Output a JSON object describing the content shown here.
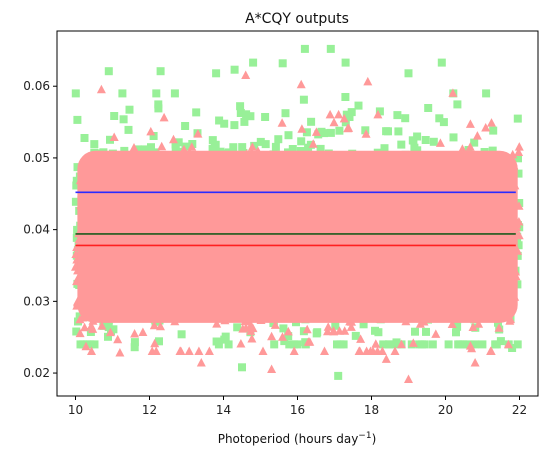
{
  "chart_data": {
    "type": "scatter",
    "title": "A*CQY outputs",
    "xlabel_main": "Photoperiod (hours day",
    "xlabel_sup": "−1",
    "xlabel_close": ")",
    "ylabel": "",
    "xlim": [
      9.5,
      22.5
    ],
    "ylim": [
      0.0168,
      0.0677
    ],
    "xticks": [
      "10",
      "12",
      "14",
      "16",
      "18",
      "20",
      "22"
    ],
    "xtick_values": [
      10,
      12,
      14,
      16,
      18,
      20,
      22
    ],
    "yticks": [
      "0.02",
      "0.03",
      "0.04",
      "0.05",
      "0.06"
    ],
    "ytick_values": [
      0.02,
      0.03,
      0.04,
      0.05,
      0.06
    ],
    "grid": false,
    "legend": "none",
    "scatter_series": [
      {
        "marker": "square",
        "color": "#98f098",
        "x_range": [
          10,
          22
        ],
        "center": 0.0394,
        "spread": 0.0075,
        "band": [
          0.024,
          0.059
        ],
        "outliers": [
          {
            "x": 10.9,
            "y": 0.0621
          },
          {
            "x": 12.3,
            "y": 0.0621
          },
          {
            "x": 13.8,
            "y": 0.0618
          },
          {
            "x": 14.3,
            "y": 0.0623
          },
          {
            "x": 14.8,
            "y": 0.0633
          },
          {
            "x": 15.6,
            "y": 0.0632
          },
          {
            "x": 16.2,
            "y": 0.0652
          },
          {
            "x": 16.9,
            "y": 0.0652
          },
          {
            "x": 17.3,
            "y": 0.0633
          },
          {
            "x": 19.9,
            "y": 0.0633
          },
          {
            "x": 19.0,
            "y": 0.0618
          },
          {
            "x": 10.2,
            "y": 0.024
          },
          {
            "x": 11.6,
            "y": 0.0236
          },
          {
            "x": 17.1,
            "y": 0.0196
          },
          {
            "x": 21.8,
            "y": 0.0235
          },
          {
            "x": 14.5,
            "y": 0.0208
          }
        ]
      },
      {
        "marker": "triangle-up",
        "color": "#ff9999",
        "x_range": [
          10,
          22
        ],
        "center": 0.0378,
        "spread": 0.0065,
        "band": [
          0.023,
          0.056
        ],
        "outliers": [
          {
            "x": 10.7,
            "y": 0.0595
          },
          {
            "x": 14.6,
            "y": 0.0615
          },
          {
            "x": 16.1,
            "y": 0.0602
          },
          {
            "x": 17.9,
            "y": 0.0606
          },
          {
            "x": 20.2,
            "y": 0.059
          },
          {
            "x": 11.2,
            "y": 0.0228
          },
          {
            "x": 13.4,
            "y": 0.0214
          },
          {
            "x": 15.3,
            "y": 0.0205
          },
          {
            "x": 18.4,
            "y": 0.0219
          },
          {
            "x": 19.0,
            "y": 0.0191
          },
          {
            "x": 20.8,
            "y": 0.0214
          }
        ]
      }
    ],
    "mean_lines": [
      {
        "color": "#2b2bff",
        "y": 0.0452
      },
      {
        "color": "#1e5a1e",
        "y": 0.0394
      },
      {
        "color": "#ff2020",
        "y": 0.0378
      }
    ],
    "mean_lines_x": [
      10,
      21.9
    ]
  }
}
